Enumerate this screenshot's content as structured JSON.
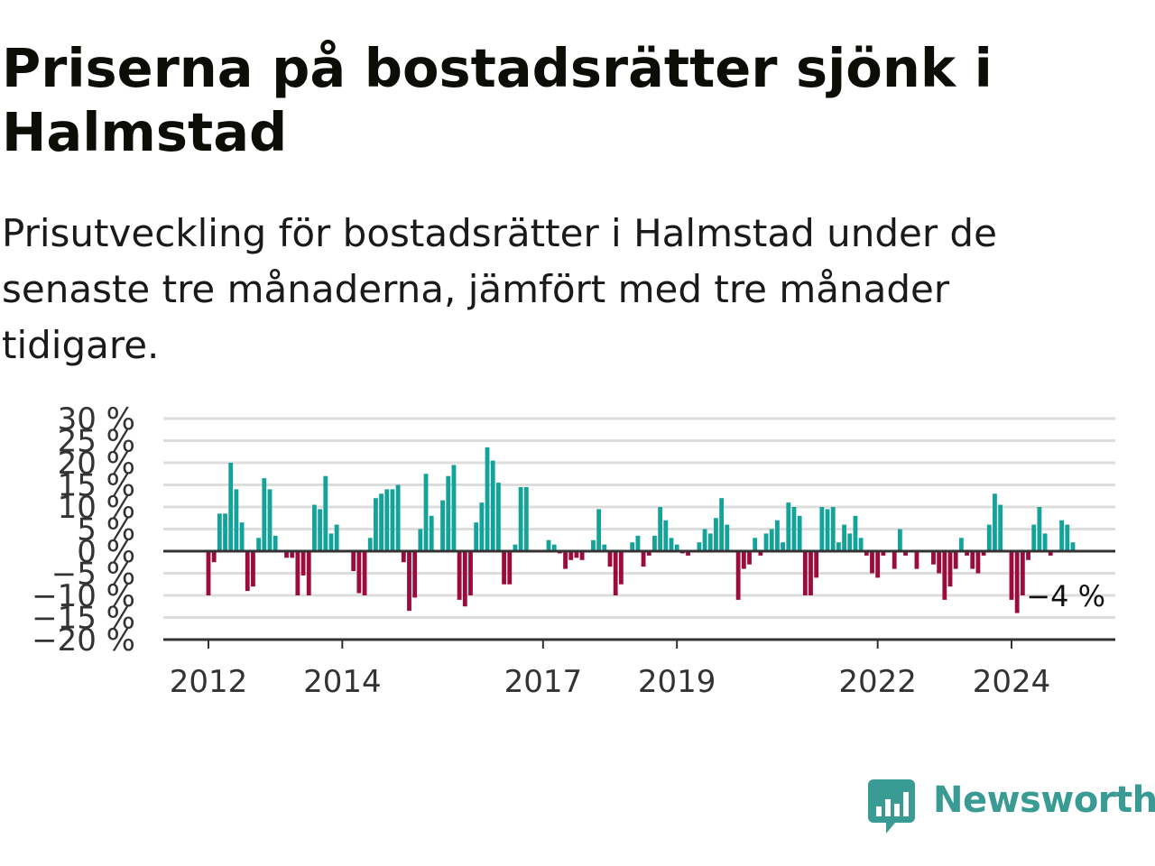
{
  "title": "Priserna på bostadsrätter sjönk i Halmstad",
  "subtitle": "Prisutveckling för bostadsrätter i Halmstad under de senaste tre månaderna, jämfört med tre månader tidigare.",
  "brand": {
    "name": "Newsworthy",
    "icon": "newsworthy-logo-icon"
  },
  "colors": {
    "positive": "#13a39a",
    "negative": "#9b0c3d",
    "grid": "#dddddd",
    "axis": "#333333"
  },
  "chart_data": {
    "type": "bar",
    "ylim": [
      -20,
      30
    ],
    "yticks": [
      30,
      25,
      20,
      15,
      10,
      5,
      0,
      -5,
      -10,
      -15,
      -20
    ],
    "ytick_labels": [
      "30 %",
      "25 %",
      "20 %",
      "15 %",
      "10 %",
      "5 %",
      "0 %",
      "−5 %",
      "−10 %",
      "−15 %",
      "−20 %"
    ],
    "xticks": [
      {
        "label": "2012",
        "value": "2012-01"
      },
      {
        "label": "2014",
        "value": "2014-01"
      },
      {
        "label": "2017",
        "value": "2017-01"
      },
      {
        "label": "2019",
        "value": "2019-01"
      },
      {
        "label": "2022",
        "value": "2022-01"
      },
      {
        "label": "2024",
        "value": "2024-01"
      }
    ],
    "start": "2011-09",
    "end": "2024-12",
    "last_label": "−4 %",
    "grid": true,
    "legend": "none",
    "values": [
      0,
      0,
      0,
      0,
      -10,
      -2.5,
      8.5,
      8.5,
      20,
      14,
      6.5,
      -9,
      -8,
      3,
      16.5,
      14,
      3.5,
      0,
      -1.5,
      -1.5,
      -10,
      -5.5,
      -10,
      10.5,
      9.5,
      17,
      4,
      6,
      0.3,
      0.3,
      -4.5,
      -9.5,
      -10,
      3,
      12,
      13,
      14,
      14,
      15,
      -2.5,
      -13.5,
      -10.5,
      5,
      17.5,
      8,
      0.2,
      11.5,
      17,
      19.5,
      -11,
      -12.5,
      -10,
      6.5,
      11,
      23.5,
      20.5,
      15.5,
      -7.5,
      -7.5,
      1.5,
      14.5,
      14.5,
      0,
      0,
      0,
      2.5,
      1.5,
      -0.5,
      -4,
      -2,
      -1.5,
      -2,
      0,
      2.5,
      9.5,
      1.5,
      -3.5,
      -10,
      -7.5,
      0.2,
      2,
      3.5,
      -3.5,
      -1,
      3.5,
      10,
      7,
      3,
      1.5,
      -0.5,
      -1,
      0.2,
      2,
      5,
      4,
      7.5,
      12,
      6,
      0.2,
      -11,
      -4,
      -3,
      3,
      -1,
      4,
      5,
      7,
      2,
      11,
      10,
      8,
      -10,
      -10,
      -6,
      10,
      9.5,
      10,
      2,
      6,
      4,
      8,
      3,
      -1,
      -5,
      -6,
      -1,
      0.2,
      -4,
      5,
      -1,
      0.2,
      -4,
      0,
      0,
      -3,
      -5,
      -11,
      -8,
      -4,
      3,
      -1,
      -4,
      -5,
      -1,
      6,
      13,
      10.5,
      0,
      -11,
      -14,
      -10,
      -2,
      6,
      10,
      4,
      -1,
      0.3,
      7,
      6,
      2,
      -4,
      0
    ]
  }
}
